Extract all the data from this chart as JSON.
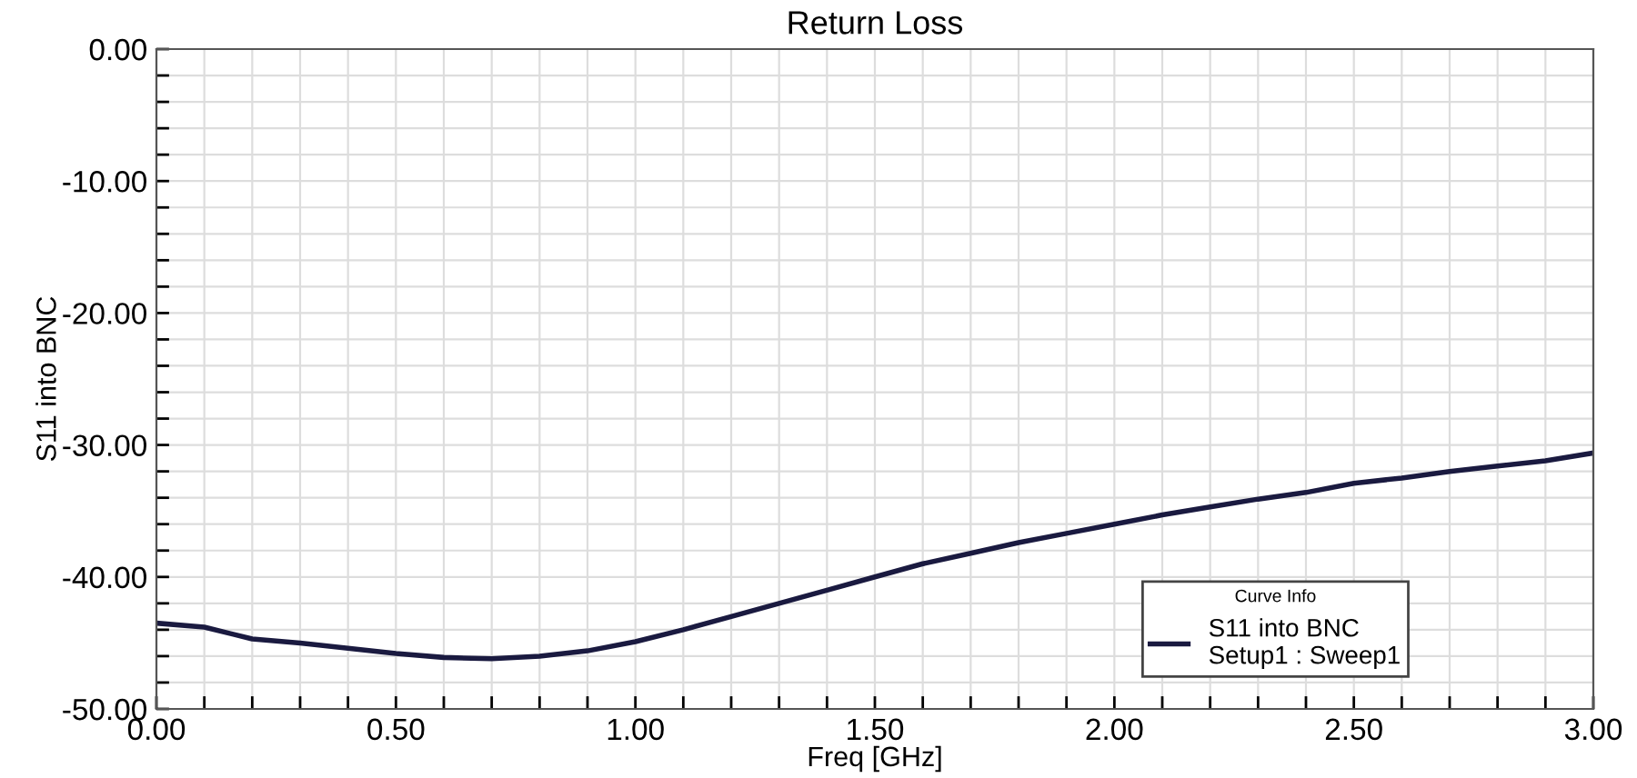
{
  "chart_data": {
    "type": "line",
    "title": "Return Loss",
    "xlabel": "Freq [GHz]",
    "ylabel": "S11 into BNC",
    "legend_title": "Curve Info",
    "x": [
      0,
      0.1,
      0.2,
      0.3,
      0.4,
      0.5,
      0.6,
      0.7,
      0.8,
      0.9,
      1.0,
      1.1,
      1.2,
      1.3,
      1.4,
      1.5,
      1.6,
      1.7,
      1.8,
      1.9,
      2.0,
      2.1,
      2.2,
      2.3,
      2.4,
      2.5,
      2.6,
      2.7,
      2.8,
      2.9,
      3.0
    ],
    "series": [
      {
        "name": "S11 into BNC\nSetup1 : Sweep1",
        "color": "#1a1a40",
        "values": [
          -43.5,
          -43.8,
          -44.7,
          -45.0,
          -45.4,
          -45.8,
          -46.1,
          -46.2,
          -46.0,
          -45.6,
          -44.9,
          -44.0,
          -43.0,
          -42.0,
          -41.0,
          -40.0,
          -39.0,
          -38.2,
          -37.4,
          -36.7,
          -36.0,
          -35.3,
          -34.7,
          -34.1,
          -33.6,
          -32.9,
          -32.5,
          -32.0,
          -31.6,
          -31.2,
          -30.6
        ]
      }
    ],
    "xlim": [
      0,
      3
    ],
    "ylim": [
      -50,
      0
    ],
    "xticks": [
      {
        "value": 0,
        "label": "0.00"
      },
      {
        "value": 0.1,
        "label": null
      },
      {
        "value": 0.2,
        "label": null
      },
      {
        "value": 0.3,
        "label": null
      },
      {
        "value": 0.4,
        "label": null
      },
      {
        "value": 0.5,
        "label": "0.50"
      },
      {
        "value": 0.6,
        "label": null
      },
      {
        "value": 0.7,
        "label": null
      },
      {
        "value": 0.8,
        "label": null
      },
      {
        "value": 0.9,
        "label": null
      },
      {
        "value": 1.0,
        "label": "1.00"
      },
      {
        "value": 1.1,
        "label": null
      },
      {
        "value": 1.2,
        "label": null
      },
      {
        "value": 1.3,
        "label": null
      },
      {
        "value": 1.4,
        "label": null
      },
      {
        "value": 1.5,
        "label": "1.50"
      },
      {
        "value": 1.6,
        "label": null
      },
      {
        "value": 1.7,
        "label": null
      },
      {
        "value": 1.8,
        "label": null
      },
      {
        "value": 1.9,
        "label": null
      },
      {
        "value": 2.0,
        "label": "2.00"
      },
      {
        "value": 2.1,
        "label": null
      },
      {
        "value": 2.2,
        "label": null
      },
      {
        "value": 2.3,
        "label": null
      },
      {
        "value": 2.4,
        "label": null
      },
      {
        "value": 2.5,
        "label": "2.50"
      },
      {
        "value": 2.6,
        "label": null
      },
      {
        "value": 2.7,
        "label": null
      },
      {
        "value": 2.8,
        "label": null
      },
      {
        "value": 2.9,
        "label": null
      },
      {
        "value": 3.0,
        "label": "3.00"
      }
    ],
    "yticks": [
      {
        "value": -50,
        "label": "-50.00"
      },
      {
        "value": -48,
        "label": null
      },
      {
        "value": -46,
        "label": null
      },
      {
        "value": -44,
        "label": null
      },
      {
        "value": -42,
        "label": null
      },
      {
        "value": -40,
        "label": "-40.00"
      },
      {
        "value": -38,
        "label": null
      },
      {
        "value": -36,
        "label": null
      },
      {
        "value": -34,
        "label": null
      },
      {
        "value": -32,
        "label": null
      },
      {
        "value": -30,
        "label": "-30.00"
      },
      {
        "value": -28,
        "label": null
      },
      {
        "value": -26,
        "label": null
      },
      {
        "value": -24,
        "label": null
      },
      {
        "value": -22,
        "label": null
      },
      {
        "value": -20,
        "label": "-20.00"
      },
      {
        "value": -18,
        "label": null
      },
      {
        "value": -16,
        "label": null
      },
      {
        "value": -14,
        "label": null
      },
      {
        "value": -12,
        "label": null
      },
      {
        "value": -10,
        "label": "-10.00"
      },
      {
        "value": -8,
        "label": null
      },
      {
        "value": -6,
        "label": null
      },
      {
        "value": -4,
        "label": null
      },
      {
        "value": -2,
        "label": null
      },
      {
        "value": 0,
        "label": "0.00"
      }
    ],
    "grid": true,
    "legend": "bottom right",
    "marker": "none",
    "line_style": "solid"
  }
}
